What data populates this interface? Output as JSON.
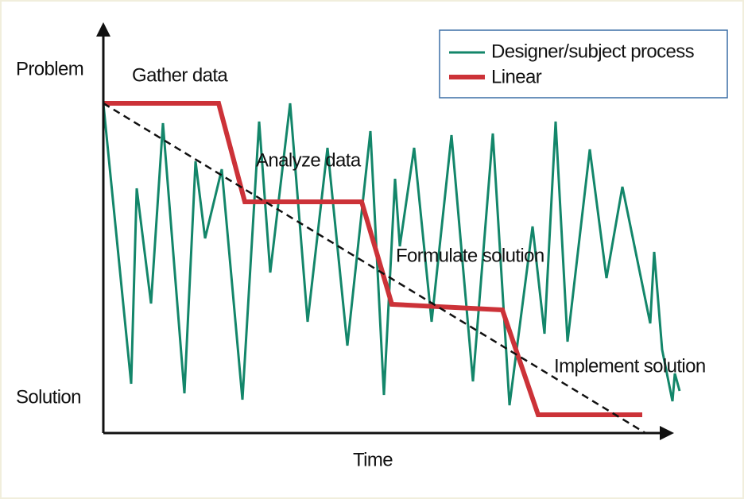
{
  "axes": {
    "y_top": "Problem",
    "y_bottom": "Solution",
    "x": "Time"
  },
  "phases": [
    "Gather data",
    "Analyze data",
    "Formulate solution",
    "Implement solution"
  ],
  "legend": [
    "Designer/subject process",
    "Linear"
  ]
}
